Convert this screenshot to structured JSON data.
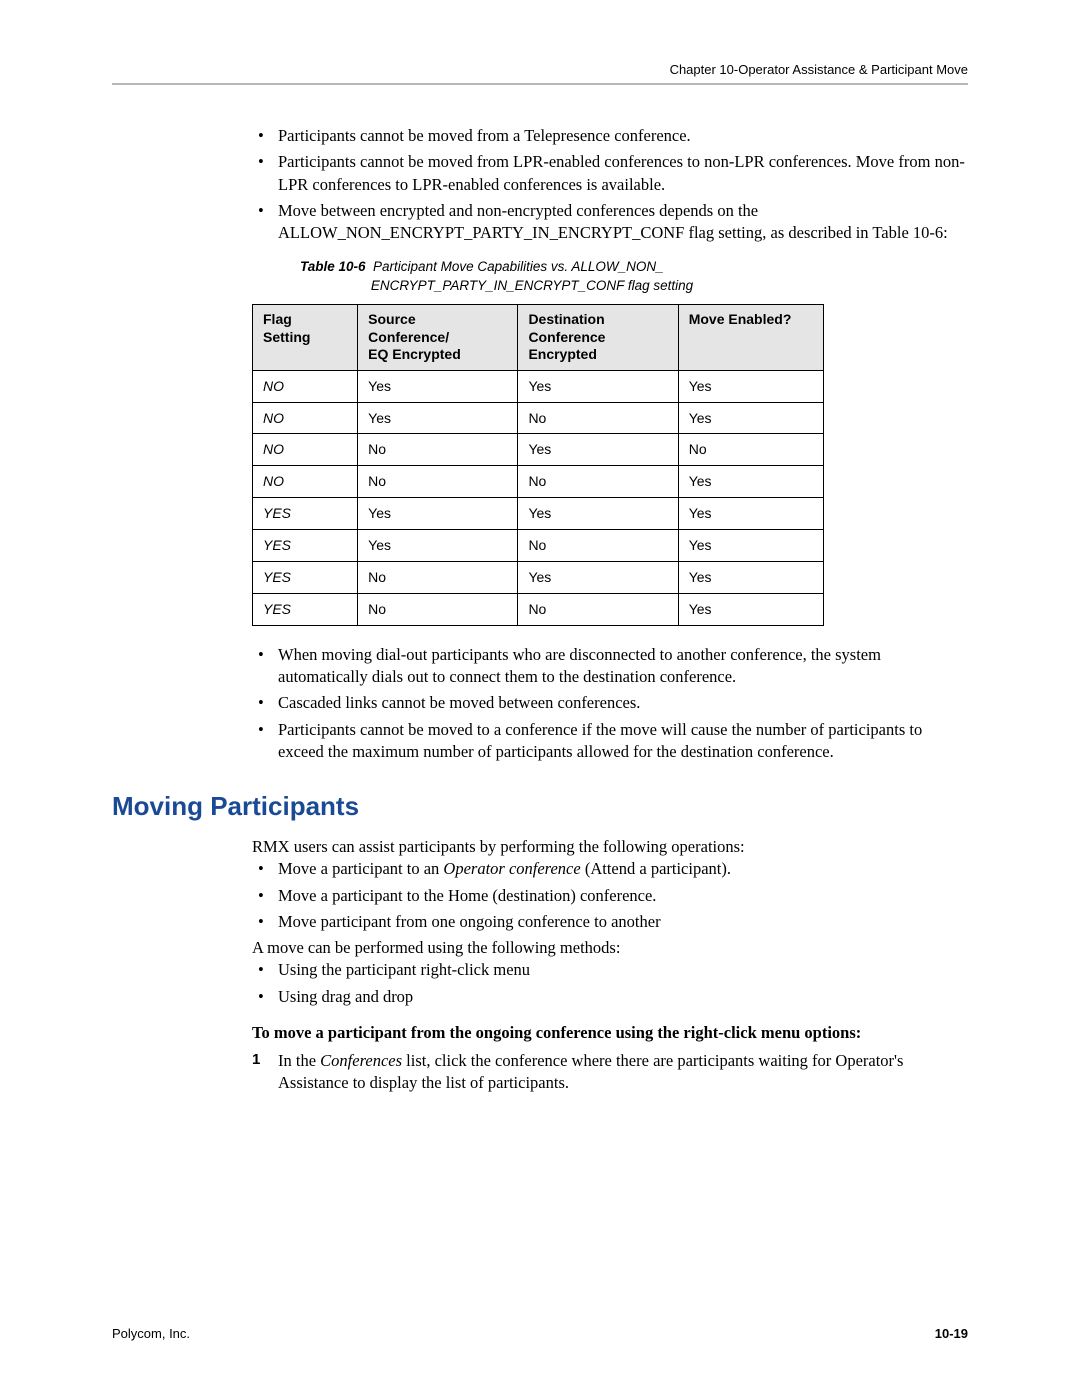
{
  "header": {
    "chapter": "Chapter 10-Operator Assistance & Participant Move"
  },
  "bullets_top": [
    "Participants cannot be moved from a Telepresence conference.",
    "Participants cannot be moved from LPR-enabled conferences to non-LPR conferences. Move from non-LPR conferences to LPR-enabled conferences is available.",
    "Move between encrypted and non-encrypted conferences depends on the ALLOW_NON_ENCRYPT_PARTY_IN_ENCRYPT_CONF flag setting, as described in Table 10-6:"
  ],
  "table": {
    "caption_label": "Table 10-6",
    "caption_line1": "Participant Move Capabilities vs. ALLOW_NON_",
    "caption_line2": "ENCRYPT_PARTY_IN_ENCRYPT_CONF flag setting",
    "headers": {
      "c1a": "Flag",
      "c1b": "Setting",
      "c2a": "Source",
      "c2b": "Conference/",
      "c2c": "EQ Encrypted",
      "c3a": "Destination",
      "c3b": "Conference",
      "c3c": "Encrypted",
      "c4": "Move Enabled?"
    },
    "col_widths": [
      "105px",
      "160px",
      "160px",
      "145px"
    ],
    "rows": [
      {
        "flag": "NO",
        "src": "Yes",
        "dst": "Yes",
        "move": "Yes"
      },
      {
        "flag": "NO",
        "src": "Yes",
        "dst": "No",
        "move": "Yes"
      },
      {
        "flag": "NO",
        "src": "No",
        "dst": "Yes",
        "move": "No"
      },
      {
        "flag": "NO",
        "src": "No",
        "dst": "No",
        "move": "Yes"
      },
      {
        "flag": "YES",
        "src": "Yes",
        "dst": "Yes",
        "move": "Yes"
      },
      {
        "flag": "YES",
        "src": "Yes",
        "dst": "No",
        "move": "Yes"
      },
      {
        "flag": "YES",
        "src": "No",
        "dst": "Yes",
        "move": "Yes"
      },
      {
        "flag": "YES",
        "src": "No",
        "dst": "No",
        "move": "Yes"
      }
    ]
  },
  "bullets_mid": [
    "When moving dial-out participants who are disconnected to another conference, the system automatically dials out to connect them to the destination conference.",
    "Cascaded links cannot be moved between conferences.",
    "Participants cannot be moved to a conference if the move will cause the number of participants to exceed the maximum number of participants allowed for the destination conference."
  ],
  "section": {
    "heading": "Moving Participants",
    "intro": "RMX users can assist participants by performing the following operations:",
    "ops": [
      {
        "pre": "Move a participant to an ",
        "em": "Operator conference",
        "post": " (Attend a participant)."
      },
      {
        "pre": "Move a participant to the Home (destination) conference.",
        "em": "",
        "post": ""
      },
      {
        "pre": "Move participant from one ongoing conference to another",
        "em": "",
        "post": ""
      }
    ],
    "methods_intro": "A move can be performed using the following methods:",
    "methods": [
      "Using the participant right-click menu",
      "Using drag and drop"
    ],
    "procedure_heading": "To move a participant from the ongoing conference using the right-click menu options:",
    "steps": [
      {
        "num": "1",
        "pre": "In the ",
        "em": "Conferences",
        "post": " list, click the conference where there are participants waiting for Operator's Assistance to display the list of participants."
      }
    ]
  },
  "footer": {
    "company": "Polycom, Inc.",
    "page": "10-19"
  },
  "colors": {
    "heading": "#1a4a94",
    "rule": "#b7b7b7",
    "th_bg": "#e5e5e5"
  }
}
